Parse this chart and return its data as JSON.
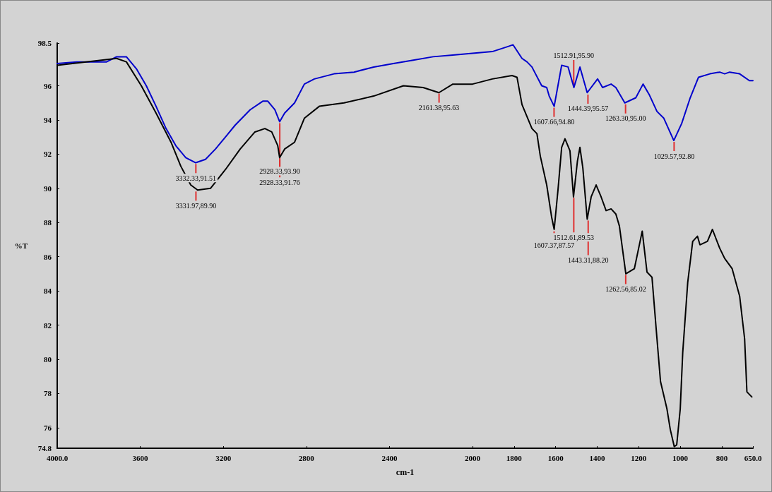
{
  "chart_data": {
    "type": "line",
    "xlabel": "cm-1",
    "ylabel": "%T",
    "xlim": [
      4000,
      650
    ],
    "ylim": [
      74.8,
      98.5
    ],
    "xticks": [
      {
        "value": 4000,
        "label": "4000.0"
      },
      3600,
      3200,
      2800,
      2400,
      2000,
      1800,
      1600,
      1400,
      1200,
      1000,
      800,
      {
        "value": 650,
        "label": "650.0"
      }
    ],
    "yticks": [
      74.8,
      76,
      78,
      80,
      82,
      84,
      86,
      88,
      90,
      92,
      94,
      96,
      98.5
    ],
    "grid": false,
    "marker": "none",
    "line_style": "solid",
    "series": [
      {
        "color": "#0000cc",
        "x": [
          4000,
          3905,
          3762,
          3714,
          3667,
          3619,
          3571,
          3524,
          3476,
          3429,
          3381,
          3333,
          3286,
          3238,
          3190,
          3143,
          3071,
          3010,
          2986,
          2952,
          2929,
          2905,
          2857,
          2810,
          2762,
          2667,
          2571,
          2476,
          2381,
          2286,
          2190,
          2095,
          2000,
          1905,
          1829,
          1805,
          1762,
          1738,
          1714,
          1667,
          1643,
          1631,
          1607,
          1571,
          1540,
          1512,
          1483,
          1448,
          1398,
          1374,
          1333,
          1310,
          1267,
          1214,
          1179,
          1150,
          1112,
          1079,
          1031,
          993,
          952,
          912,
          857,
          810,
          786,
          762,
          714,
          667,
          650
        ],
        "values": [
          97.3,
          97.4,
          97.4,
          97.7,
          97.7,
          97.0,
          96.0,
          94.8,
          93.5,
          92.5,
          91.8,
          91.5,
          91.7,
          92.3,
          93.0,
          93.7,
          94.6,
          95.1,
          95.1,
          94.6,
          93.9,
          94.4,
          95.0,
          96.1,
          96.4,
          96.7,
          96.8,
          97.1,
          97.3,
          97.5,
          97.7,
          97.8,
          97.9,
          98.0,
          98.3,
          98.4,
          97.6,
          97.4,
          97.1,
          96.0,
          95.9,
          95.4,
          94.8,
          97.2,
          97.1,
          95.9,
          97.1,
          95.6,
          96.4,
          95.9,
          96.1,
          95.9,
          95.0,
          95.3,
          96.1,
          95.5,
          94.5,
          94.1,
          92.8,
          93.8,
          95.3,
          96.5,
          96.7,
          96.8,
          96.7,
          96.8,
          96.7,
          96.3,
          96.3
        ]
      },
      {
        "color": "#000000",
        "x": [
          4000,
          3714,
          3667,
          3595,
          3524,
          3452,
          3405,
          3357,
          3324,
          3262,
          3190,
          3119,
          3048,
          3000,
          2967,
          2938,
          2929,
          2905,
          2857,
          2810,
          2738,
          2619,
          2476,
          2333,
          2238,
          2162,
          2095,
          2000,
          1905,
          1810,
          1786,
          1762,
          1714,
          1690,
          1674,
          1643,
          1619,
          1607,
          1588,
          1571,
          1555,
          1531,
          1514,
          1495,
          1483,
          1469,
          1448,
          1429,
          1405,
          1381,
          1357,
          1333,
          1310,
          1293,
          1262,
          1221,
          1183,
          1160,
          1136,
          1112,
          1095,
          1064,
          1048,
          1029,
          1017,
          1000,
          988,
          964,
          940,
          917,
          905,
          869,
          845,
          810,
          786,
          750,
          714,
          690,
          679,
          655
        ],
        "values": [
          97.2,
          97.6,
          97.4,
          96.0,
          94.4,
          92.7,
          91.3,
          90.2,
          89.9,
          90.0,
          91.1,
          92.3,
          93.3,
          93.5,
          93.3,
          92.5,
          91.8,
          92.3,
          92.7,
          94.1,
          94.8,
          95.0,
          95.4,
          96.0,
          95.9,
          95.6,
          96.1,
          96.1,
          96.4,
          96.6,
          96.5,
          94.9,
          93.5,
          93.2,
          91.9,
          90.2,
          88.3,
          87.6,
          90.0,
          92.4,
          92.9,
          92.2,
          89.5,
          91.6,
          92.4,
          91.2,
          88.2,
          89.5,
          90.2,
          89.5,
          88.7,
          88.8,
          88.5,
          87.8,
          85.0,
          85.3,
          87.5,
          85.1,
          84.8,
          81.2,
          78.7,
          77.1,
          75.9,
          74.9,
          75.0,
          77.1,
          80.4,
          84.5,
          86.9,
          87.2,
          86.7,
          86.9,
          87.6,
          86.5,
          85.9,
          85.3,
          83.7,
          81.2,
          78.1,
          77.8
        ]
      }
    ],
    "annotations": [
      {
        "text": "3332.33,91.51",
        "x": 3332.33,
        "y": 91.51
      },
      {
        "text": "2928.33,93.90",
        "x": 2928.33,
        "y": 93.9
      },
      {
        "text": "1607.66,94.80",
        "x": 1607.66,
        "y": 94.8
      },
      {
        "text": "1512.91,95.90",
        "x": 1512.91,
        "y": 95.9
      },
      {
        "text": "1444.39,95.57",
        "x": 1444.39,
        "y": 95.57
      },
      {
        "text": "1263.30,95.00",
        "x": 1263.3,
        "y": 95.0
      },
      {
        "text": "1029.57,92.80",
        "x": 1029.57,
        "y": 92.8
      },
      {
        "text": "3331.97,89.90",
        "x": 3331.97,
        "y": 89.9
      },
      {
        "text": "2928.33,91.76",
        "x": 2928.33,
        "y": 91.76
      },
      {
        "text": "2161.38,95.63",
        "x": 2161.38,
        "y": 95.63
      },
      {
        "text": "1607.37,87.57",
        "x": 1607.37,
        "y": 87.57
      },
      {
        "text": "1512.61,89.53",
        "x": 1512.61,
        "y": 89.53
      },
      {
        "text": "1443.31,88.20",
        "x": 1443.31,
        "y": 88.2
      },
      {
        "text": "1262.56,85.02",
        "x": 1262.56,
        "y": 85.02
      }
    ]
  }
}
